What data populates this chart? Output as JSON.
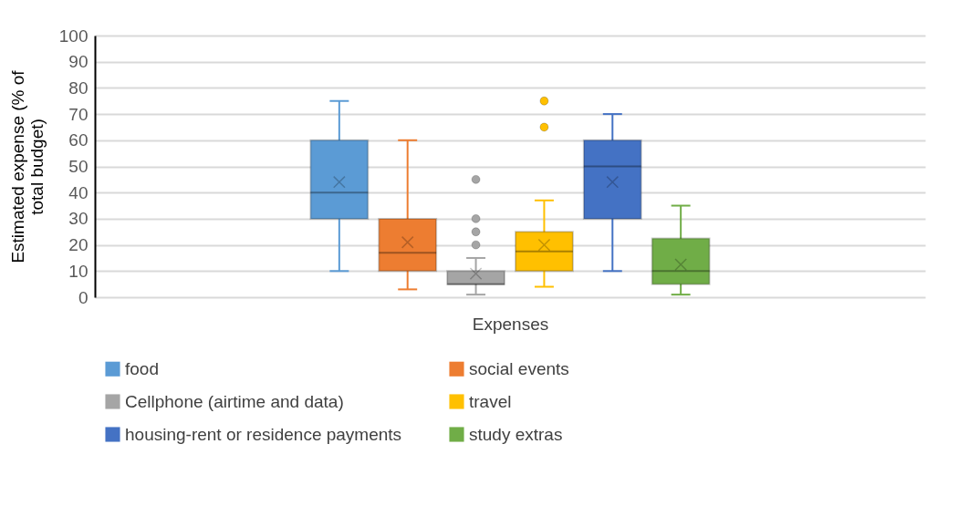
{
  "chart_data": {
    "type": "box",
    "categories": [
      null
    ],
    "xlabel": "Expenses",
    "ylabel": "Estimated expense (% of total budget)",
    "ylim": [
      0,
      100
    ],
    "yticks": [
      0,
      10,
      20,
      30,
      40,
      50,
      60,
      70,
      80,
      90,
      100
    ],
    "grid": "y",
    "legend": "bottom",
    "series": [
      {
        "name": "food",
        "color": "#5b9bd5",
        "boxes": [
          {
            "low": 10,
            "q1": 30,
            "median": 40,
            "q3": 60,
            "high": 75,
            "mean": 44
          }
        ]
      },
      {
        "name": "social events",
        "color": "#ed7d31",
        "boxes": [
          {
            "low": 3,
            "q1": 10,
            "median": 17,
            "q3": 30,
            "high": 60,
            "mean": 21
          }
        ]
      },
      {
        "name": "Cellphone (airtime and data)",
        "color": "#a5a5a5",
        "boxes": [
          {
            "low": 1,
            "q1": 5,
            "median": 5,
            "q3": 10,
            "high": 15,
            "mean": 9,
            "outliers": [
              20,
              25,
              30,
              45
            ]
          }
        ]
      },
      {
        "name": "travel",
        "color": "#ffc000",
        "boxes": [
          {
            "low": 4,
            "q1": 10,
            "median": 17.5,
            "q3": 25,
            "high": 37,
            "mean": 20,
            "outliers": [
              65,
              75
            ]
          }
        ]
      },
      {
        "name": "housing-rent or residence payments",
        "color": "#4472c4",
        "boxes": [
          {
            "low": 10,
            "q1": 30,
            "median": 50,
            "q3": 60,
            "high": 70,
            "mean": 44
          }
        ]
      },
      {
        "name": "study extras",
        "color": "#70ad47",
        "boxes": [
          {
            "low": 1,
            "q1": 5,
            "median": 10,
            "q3": 22.5,
            "high": 35,
            "mean": 12.5
          }
        ]
      }
    ]
  }
}
